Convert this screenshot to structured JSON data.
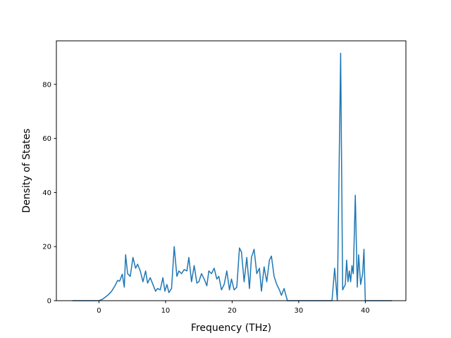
{
  "chart_data": {
    "type": "line",
    "xlabel": "Frequency (THz)",
    "ylabel": "Density of States",
    "xlim": [
      -6.4,
      46.1
    ],
    "ylim": [
      0,
      96.1
    ],
    "xticks": [
      0,
      10,
      20,
      30,
      40
    ],
    "yticks": [
      0,
      20,
      40,
      60,
      80
    ],
    "grid": false,
    "series": [
      {
        "color": "#1f77b4",
        "x": [
          -4,
          0,
          0.5,
          0.9,
          1.4,
          1.9,
          2.4,
          2.8,
          3.1,
          3.5,
          3.8,
          4.0,
          4.3,
          4.7,
          5.1,
          5.5,
          5.8,
          6.2,
          6.6,
          7.0,
          7.3,
          7.7,
          8.1,
          8.5,
          8.8,
          9.2,
          9.6,
          9.9,
          10.2,
          10.5,
          10.9,
          11.3,
          11.7,
          12.0,
          12.4,
          12.8,
          13.2,
          13.5,
          13.9,
          14.3,
          14.7,
          15.0,
          15.4,
          15.8,
          16.2,
          16.5,
          16.9,
          17.3,
          17.7,
          18.0,
          18.4,
          18.8,
          19.2,
          19.6,
          19.9,
          20.3,
          20.7,
          21.1,
          21.4,
          21.8,
          22.2,
          22.6,
          22.9,
          23.3,
          23.7,
          24.1,
          24.4,
          24.8,
          25.2,
          25.6,
          25.9,
          26.3,
          26.7,
          27.1,
          27.4,
          27.8,
          28.3,
          35.0,
          35.4,
          35.8,
          36.3,
          36.6,
          37.0,
          37.2,
          37.4,
          37.6,
          37.8,
          38.0,
          38.2,
          38.5,
          38.8,
          39.0,
          39.3,
          39.6,
          39.8,
          40.0,
          44.0
        ],
        "values": [
          0,
          0,
          0.5,
          1.2,
          2.2,
          3.5,
          5.5,
          7.5,
          7.2,
          9.8,
          5,
          17,
          10,
          9,
          16,
          12,
          13.5,
          11,
          7,
          11,
          6.5,
          8.5,
          6,
          3.5,
          4.5,
          4,
          8.5,
          3.5,
          6,
          3,
          4.5,
          20,
          9,
          11,
          10,
          11.5,
          11,
          16,
          7,
          13,
          6.5,
          7,
          10,
          8,
          5.5,
          11,
          10,
          12,
          8,
          9,
          4,
          6,
          11,
          4,
          8,
          4,
          5,
          19.5,
          18,
          7,
          16,
          4.5,
          16,
          19,
          10,
          12,
          3.5,
          12.5,
          7,
          15,
          16.5,
          9,
          6,
          4,
          2,
          4.5,
          0,
          0,
          12,
          0,
          91.5,
          4,
          6,
          15,
          7,
          11,
          7,
          13,
          10,
          39,
          5,
          17,
          6,
          10,
          19,
          0,
          0
        ]
      }
    ]
  }
}
